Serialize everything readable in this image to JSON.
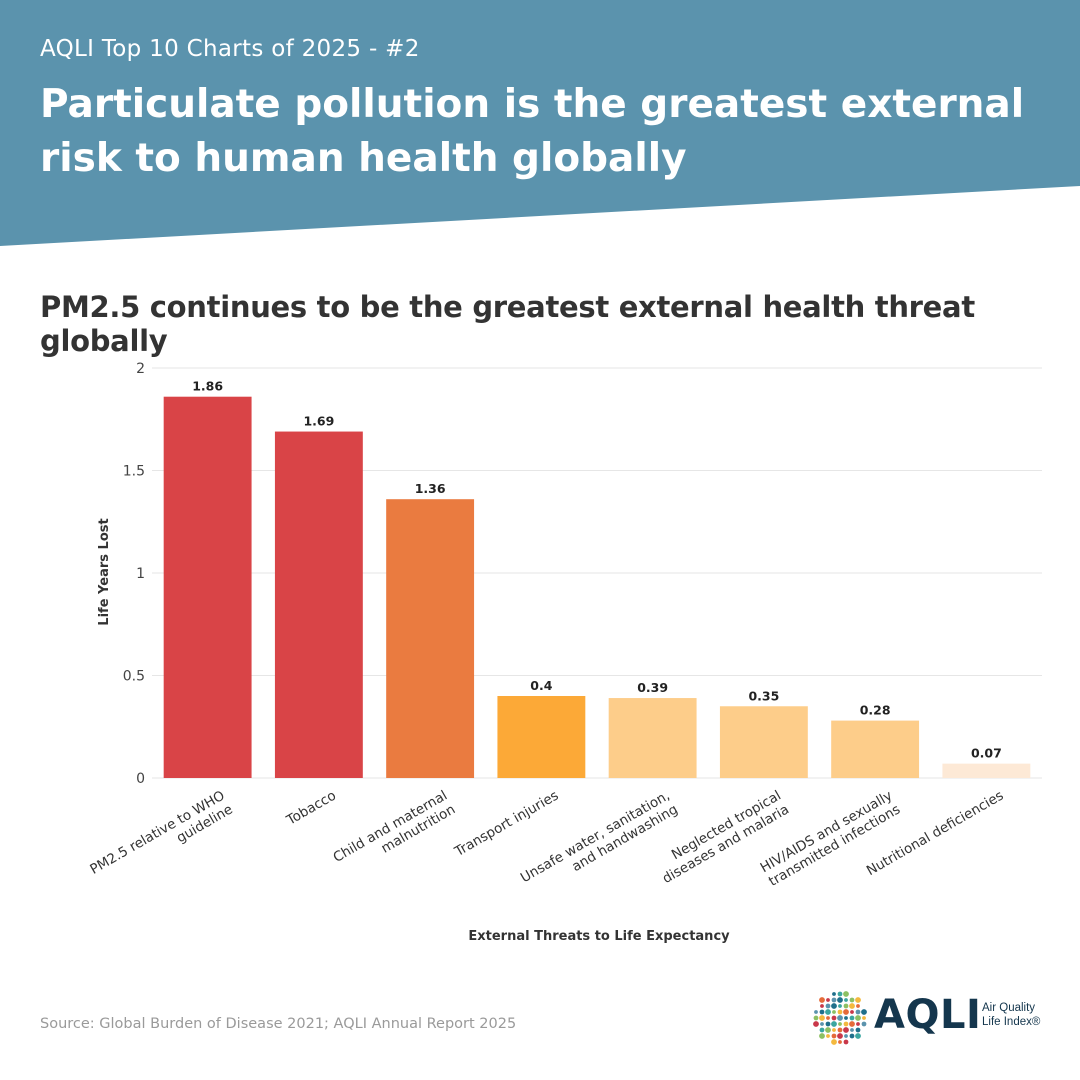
{
  "header": {
    "series_label": "AQLI Top 10 Charts of 2025 - #2",
    "headline": "Particulate pollution is the greatest external risk to human health globally",
    "background_color": "#5b93ad"
  },
  "chart_data": {
    "type": "bar",
    "title": "PM2.5 continues to be the greatest external health threat globally",
    "xlabel": "External Threats to Life Expectancy",
    "ylabel": "Life Years Lost",
    "ylim": [
      0,
      2
    ],
    "yticks": [
      0,
      0.5,
      1,
      1.5,
      2
    ],
    "grid": true,
    "categories": [
      [
        "PM2.5 relative to WHO",
        "guideline"
      ],
      [
        "Tobacco"
      ],
      [
        "Child and maternal",
        "malnutrition"
      ],
      [
        "Transport injuries"
      ],
      [
        "Unsafe water, sanitation,",
        "and handwashing"
      ],
      [
        "Neglected tropical",
        "diseases and malaria"
      ],
      [
        "HIV/AIDS and sexually",
        "transmitted infections"
      ],
      [
        "Nutritional deficiencies"
      ]
    ],
    "values": [
      1.86,
      1.69,
      1.36,
      0.4,
      0.39,
      0.35,
      0.28,
      0.07
    ],
    "colors": [
      "#d94447",
      "#d94447",
      "#ea7b40",
      "#fca937",
      "#fdcd8a",
      "#fdcd8a",
      "#fdcd8a",
      "#fde9d6"
    ]
  },
  "footer": {
    "source": "Source: Global Burden of Disease 2021; AQLI Annual Report 2025"
  },
  "logo": {
    "wordmark": "AQLI",
    "subtitle_line1": "Air Quality",
    "subtitle_line2": "Life Index®"
  }
}
